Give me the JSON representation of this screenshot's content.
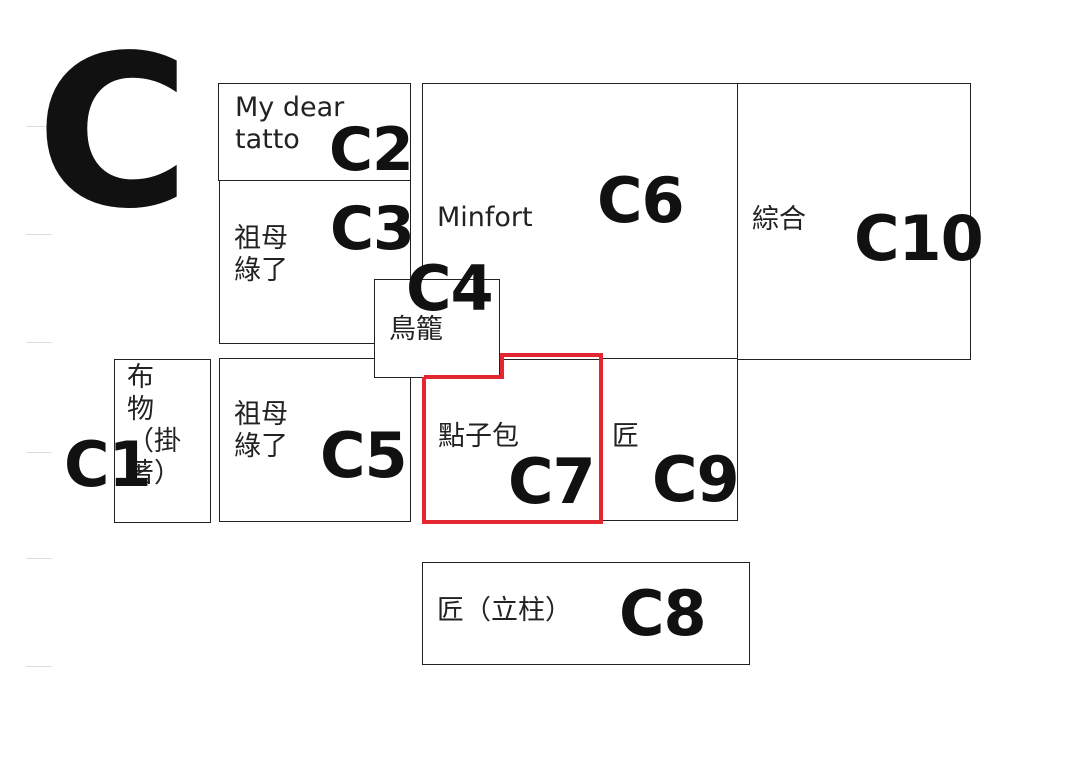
{
  "zone": "C",
  "booths": [
    {
      "id": "C1",
      "name": "布\n物\n（掛\n著）"
    },
    {
      "id": "C2",
      "name": "My dear\ntatto"
    },
    {
      "id": "C3",
      "name": "祖母\n綠了"
    },
    {
      "id": "C4",
      "name": "鳥籠"
    },
    {
      "id": "C5",
      "name": "祖母\n綠了"
    },
    {
      "id": "C6",
      "name": "Minfort"
    },
    {
      "id": "C7",
      "name": "點子包",
      "highlighted": true
    },
    {
      "id": "C8",
      "name": "匠（立柱）"
    },
    {
      "id": "C9",
      "name": "匠"
    },
    {
      "id": "C10",
      "name": "綜合"
    }
  ],
  "colors": {
    "highlight": "#e3262f",
    "border": "#222222"
  }
}
